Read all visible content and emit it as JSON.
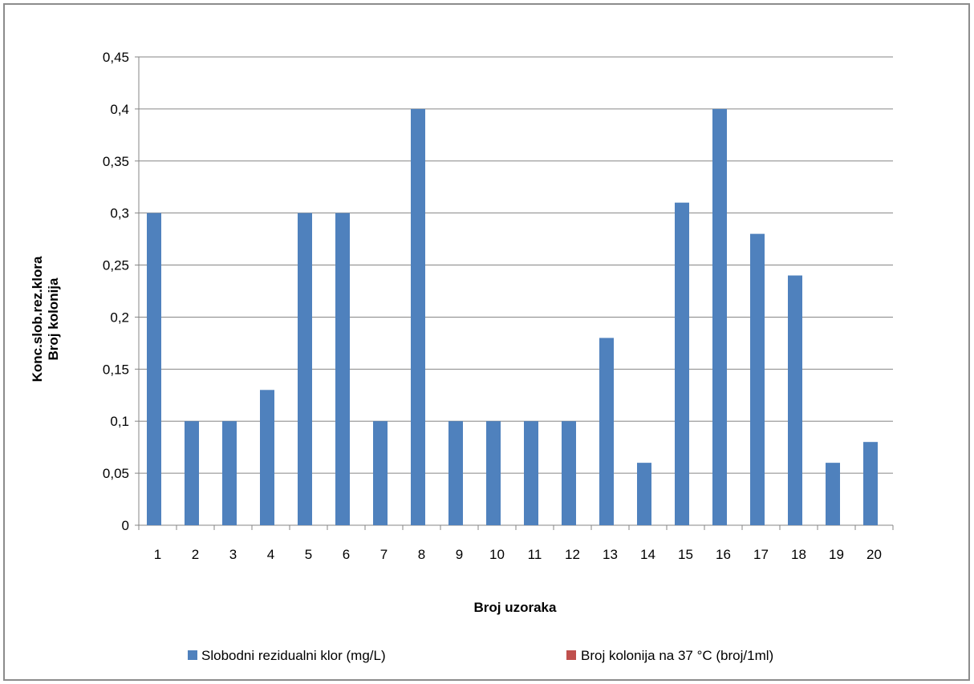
{
  "chart_data": {
    "type": "bar",
    "categories": [
      "1",
      "2",
      "3",
      "4",
      "5",
      "6",
      "7",
      "8",
      "9",
      "10",
      "11",
      "12",
      "13",
      "14",
      "15",
      "16",
      "17",
      "18",
      "19",
      "20"
    ],
    "series": [
      {
        "name": "Slobodni rezidualni klor (mg/L)",
        "color": "#4f81bd",
        "values": [
          0.3,
          0.1,
          0.1,
          0.13,
          0.3,
          0.3,
          0.1,
          0.4,
          0.1,
          0.1,
          0.1,
          0.1,
          0.18,
          0.06,
          0.31,
          0.4,
          0.28,
          0.24,
          0.06,
          0.08
        ]
      },
      {
        "name": "Broj kolonija na 37 °C (broj/1ml)",
        "color": "#c0504d",
        "values": [
          0,
          0,
          0,
          0,
          0,
          0,
          0,
          0,
          0,
          0,
          0,
          0,
          0,
          0,
          0,
          0,
          0,
          0,
          0,
          0
        ]
      }
    ],
    "xlabel": "Broj uzoraka",
    "ylabel_lines": [
      "Konc.slob.rez.klora",
      "Broj kolonija"
    ],
    "ylim": [
      0,
      0.45
    ],
    "yticks": [
      "0",
      "0,05",
      "0,1",
      "0,15",
      "0,2",
      "0,25",
      "0,3",
      "0,35",
      "0,4",
      "0,45"
    ],
    "grid": true,
    "legend_position": "bottom"
  }
}
